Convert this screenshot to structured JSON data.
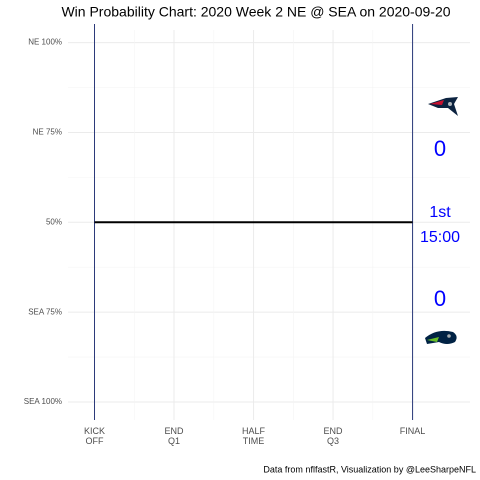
{
  "chart_data": {
    "type": "line",
    "title": "Win Probability Chart: 2020 Week 2 NE @ SEA on 2020-09-20",
    "caption": "Data from nflfastR, Visualization by @LeeSharpeNFL",
    "x": [
      0,
      3600
    ],
    "series": [
      {
        "color": "#000000",
        "values": [
          50,
          50
        ]
      }
    ],
    "xlim": [
      -300,
      4250
    ],
    "ylim": [
      -5,
      103.5
    ],
    "xticks": [
      {
        "value": 0,
        "label": "KICK\nOFF"
      },
      {
        "value": 900,
        "label": "END\nQ1"
      },
      {
        "value": 1800,
        "label": "HALF\nTIME"
      },
      {
        "value": 2700,
        "label": "END\nQ3"
      },
      {
        "value": 3600,
        "label": "FINAL"
      }
    ],
    "yticks": [
      {
        "value": 100,
        "label": "NE 100%"
      },
      {
        "value": 75,
        "label": "NE 75%"
      },
      {
        "value": 50,
        "label": "50%"
      },
      {
        "value": 25,
        "label": "SEA 75%"
      },
      {
        "value": 0,
        "label": "SEA 100%"
      }
    ],
    "vlines": [
      0,
      3600
    ],
    "vline_color": "#2b3a7a",
    "grid": true,
    "away_score": 0,
    "home_score": 0,
    "quarter": "1st",
    "clock": "15:00",
    "score_color": "#0000ff"
  }
}
